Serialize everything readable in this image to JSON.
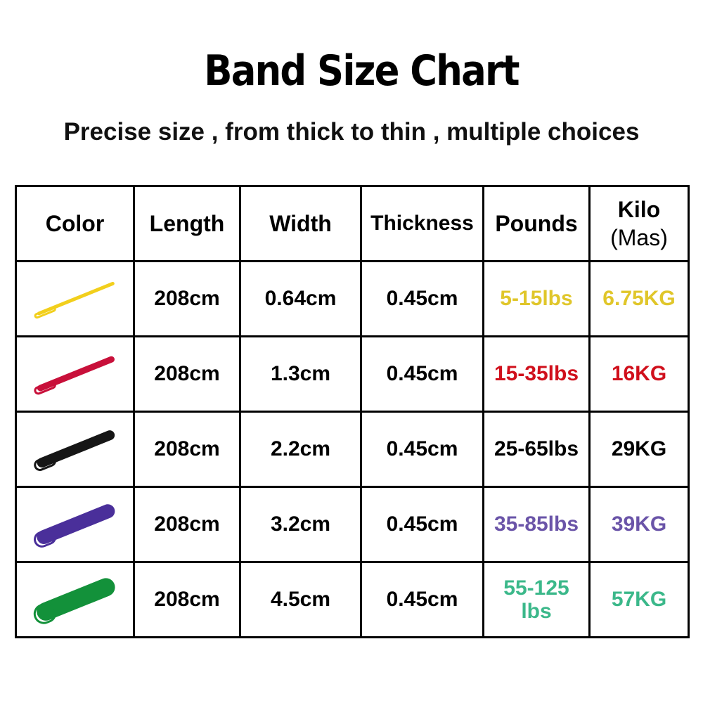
{
  "title": "Band Size Chart",
  "subtitle": "Precise size , from thick to thin , multiple choices",
  "headers": {
    "color": "Color",
    "length": "Length",
    "width": "Width",
    "thickness": "Thickness",
    "pounds": "Pounds",
    "kilo": "Kilo",
    "kilo_sub": "(Mas)"
  },
  "rows": [
    {
      "band_color": "#f2cf1c",
      "length": "208cm",
      "width": "0.64cm",
      "thickness": "0.45cm",
      "pounds": "5-15lbs",
      "kilo": "6.75KG",
      "text_color": "#e0c62a"
    },
    {
      "band_color": "#c8103a",
      "length": "208cm",
      "width": "1.3cm",
      "thickness": "0.45cm",
      "pounds": "15-35lbs",
      "kilo": "16KG",
      "text_color": "#d0101c"
    },
    {
      "band_color": "#161616",
      "length": "208cm",
      "width": "2.2cm",
      "thickness": "0.45cm",
      "pounds": "25-65lbs",
      "kilo": "29KG",
      "text_color": "#000000"
    },
    {
      "band_color": "#4a2f9a",
      "length": "208cm",
      "width": "3.2cm",
      "thickness": "0.45cm",
      "pounds": "35-85lbs",
      "kilo": "39KG",
      "text_color": "#6a54a8"
    },
    {
      "band_color": "#13913a",
      "length": "208cm",
      "width": "4.5cm",
      "thickness": "0.45cm",
      "pounds": "55-125 lbs",
      "kilo": "57KG",
      "text_color": "#3bb88a"
    }
  ]
}
